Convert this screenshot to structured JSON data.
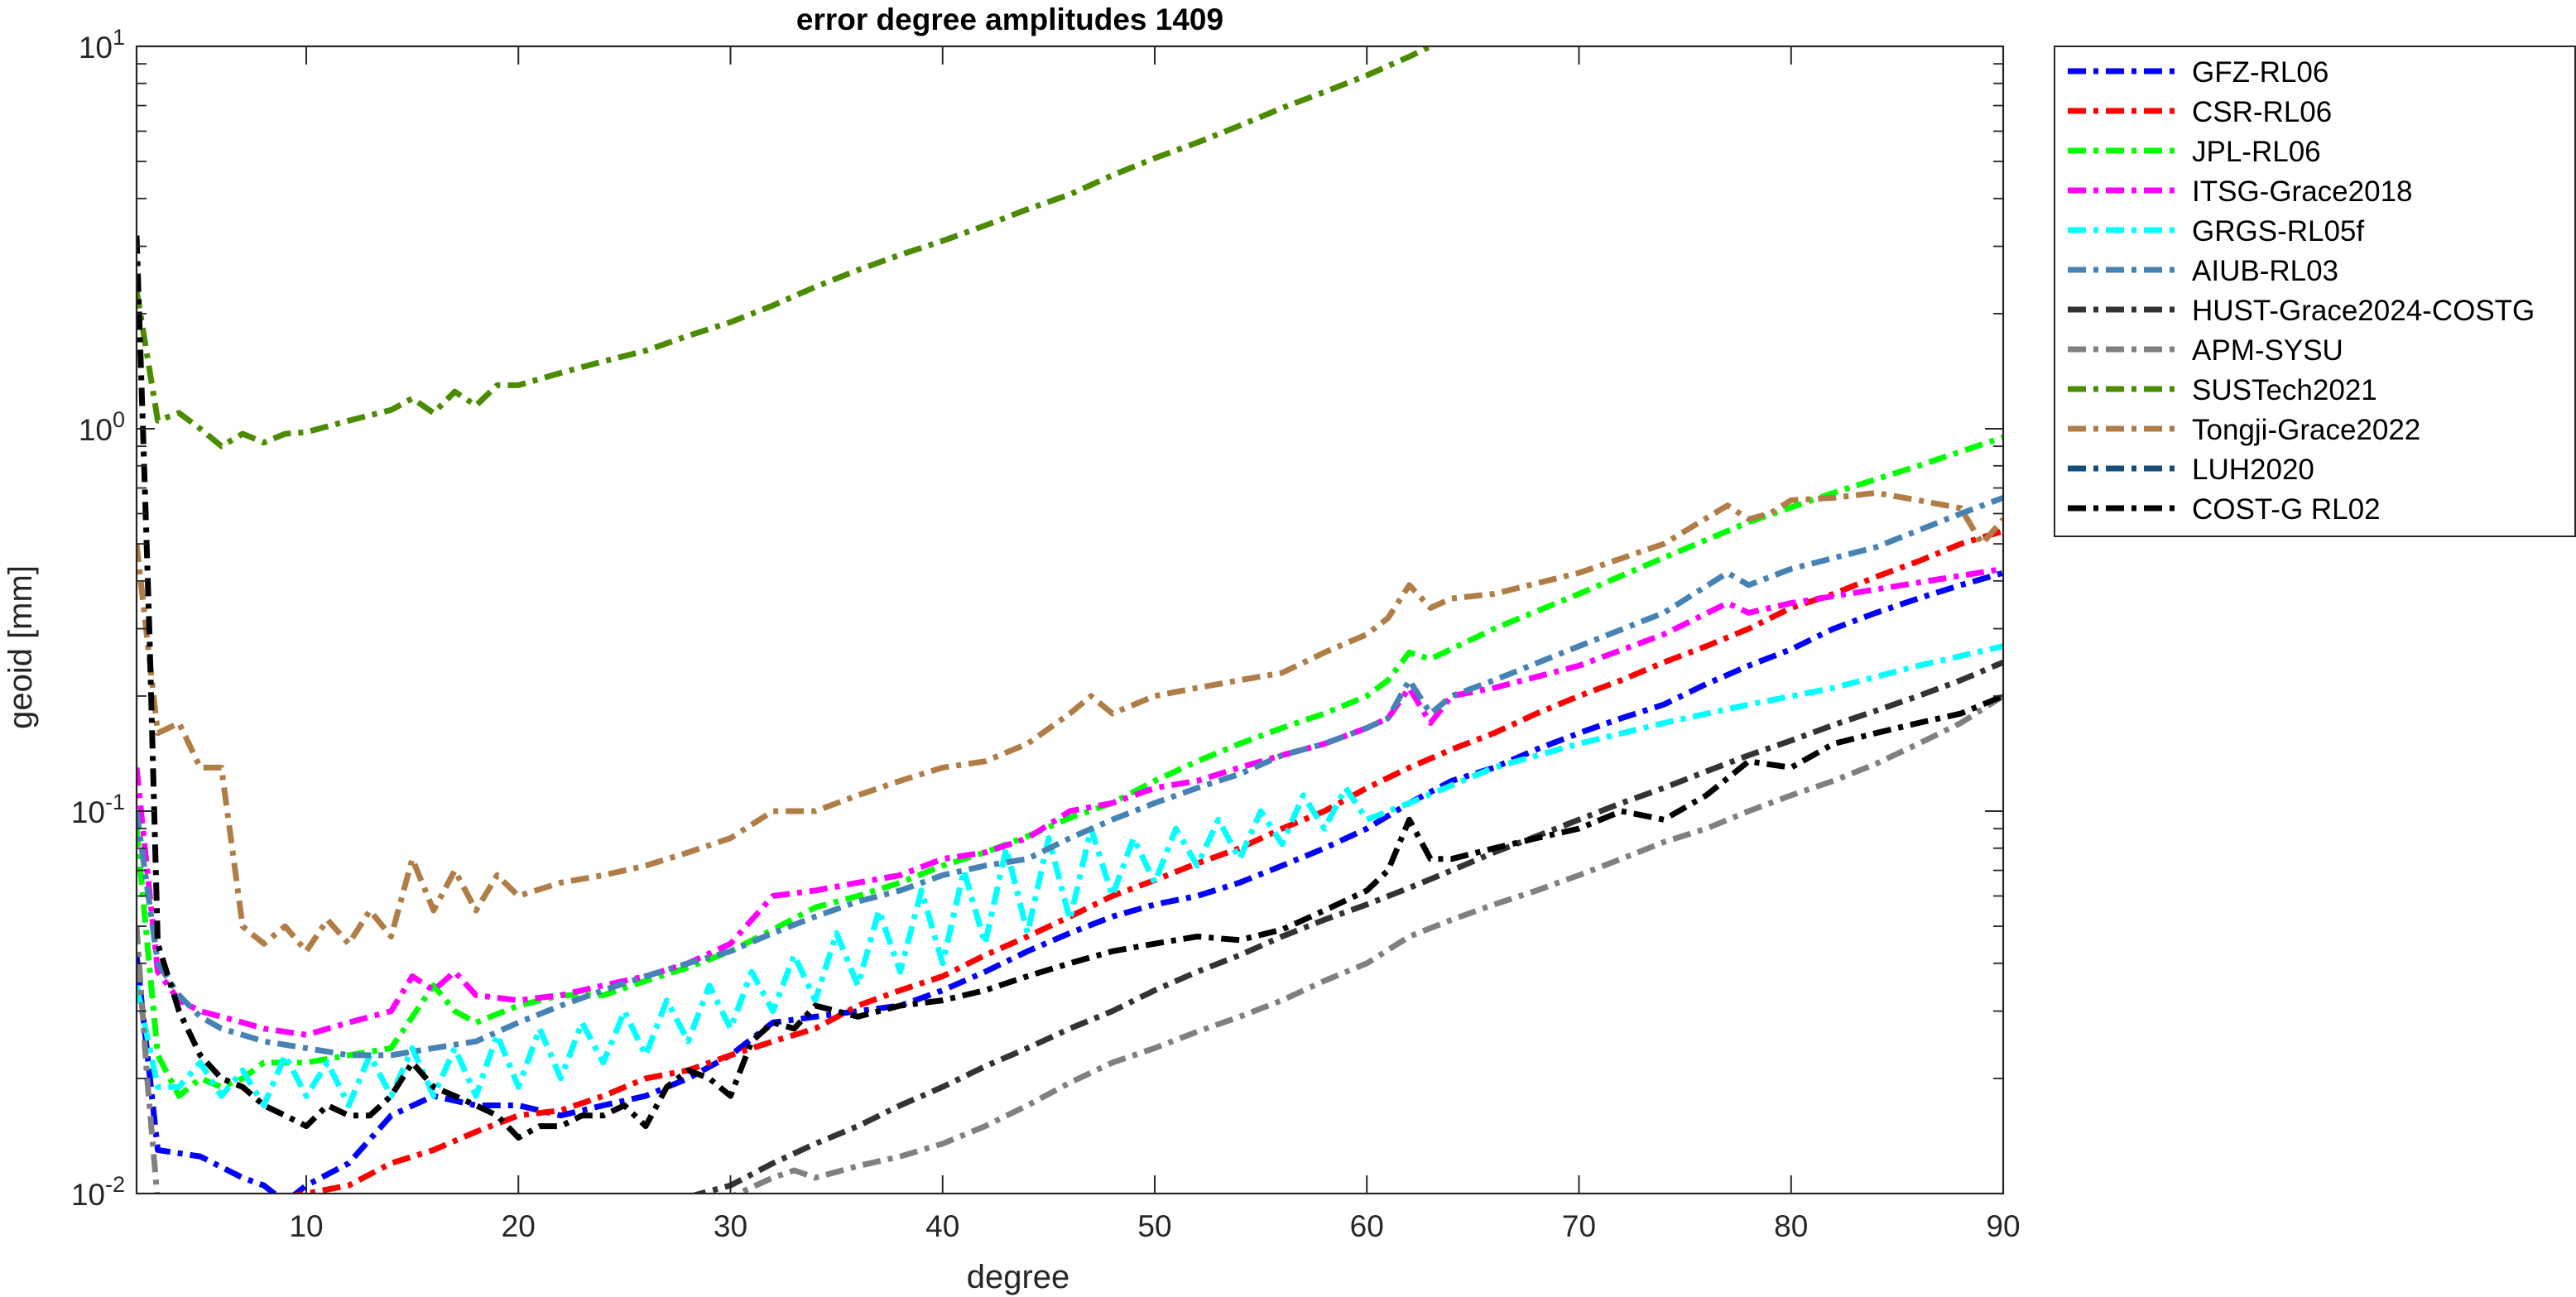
{
  "chart_data": {
    "type": "line",
    "title": "error degree amplitudes 1409",
    "xlabel": "degree",
    "ylabel": "geoid [mm]",
    "xlim": [
      2,
      90
    ],
    "ylim": [
      0.01,
      10
    ],
    "yscale": "log",
    "xticks": [
      10,
      20,
      30,
      40,
      50,
      60,
      70,
      80,
      90
    ],
    "xtick_labels": [
      "10",
      "20",
      "30",
      "40",
      "50",
      "60",
      "70",
      "80",
      "90"
    ],
    "yticks": [
      0.01,
      0.1,
      1,
      10
    ],
    "ytick_labels": [
      {
        "base": "10",
        "exp": "-2"
      },
      {
        "base": "10",
        "exp": "-1"
      },
      {
        "base": "10",
        "exp": "0"
      },
      {
        "base": "10",
        "exp": "1"
      }
    ],
    "grid": false,
    "legend_position": "outside-right",
    "series": [
      {
        "name": "GFZ-RL06",
        "color": "#0000FF",
        "style": "dashdot",
        "x": [
          2,
          3,
          5,
          7,
          8,
          9,
          10,
          12,
          14,
          16,
          18,
          20,
          22,
          24,
          26,
          28,
          30,
          32,
          34,
          36,
          38,
          40,
          42,
          44,
          46,
          48,
          50,
          52,
          54,
          56,
          58,
          60,
          62,
          64,
          66,
          68,
          70,
          72,
          74,
          76,
          78,
          80,
          82,
          84,
          86,
          88,
          90
        ],
        "y": [
          0.042,
          0.013,
          0.0125,
          0.011,
          0.0105,
          0.0095,
          0.0105,
          0.012,
          0.016,
          0.018,
          0.017,
          0.017,
          0.016,
          0.017,
          0.018,
          0.02,
          0.023,
          0.028,
          0.029,
          0.03,
          0.031,
          0.034,
          0.038,
          0.043,
          0.048,
          0.053,
          0.057,
          0.06,
          0.065,
          0.072,
          0.08,
          0.09,
          0.105,
          0.12,
          0.13,
          0.145,
          0.16,
          0.175,
          0.19,
          0.215,
          0.24,
          0.265,
          0.3,
          0.33,
          0.36,
          0.39,
          0.42
        ]
      },
      {
        "name": "CSR-RL06",
        "color": "#FF0000",
        "style": "dashdot",
        "x": [
          9,
          10,
          12,
          14,
          16,
          18,
          20,
          22,
          24,
          26,
          28,
          30,
          32,
          34,
          36,
          38,
          40,
          42,
          44,
          46,
          48,
          50,
          52,
          54,
          56,
          58,
          60,
          62,
          64,
          66,
          68,
          70,
          72,
          74,
          76,
          78,
          80,
          82,
          84,
          86,
          88,
          90
        ],
        "y": [
          0.0098,
          0.01,
          0.0105,
          0.012,
          0.013,
          0.0145,
          0.016,
          0.0165,
          0.018,
          0.02,
          0.021,
          0.023,
          0.025,
          0.027,
          0.031,
          0.034,
          0.037,
          0.042,
          0.047,
          0.053,
          0.06,
          0.066,
          0.073,
          0.08,
          0.09,
          0.1,
          0.115,
          0.13,
          0.145,
          0.16,
          0.18,
          0.2,
          0.22,
          0.245,
          0.27,
          0.3,
          0.34,
          0.37,
          0.41,
          0.45,
          0.5,
          0.54
        ]
      },
      {
        "name": "JPL-RL06",
        "color": "#00FF00",
        "style": "dashdot",
        "x": [
          2,
          3,
          4,
          5,
          6,
          7,
          8,
          10,
          12,
          14,
          16,
          17,
          18,
          20,
          22,
          24,
          26,
          28,
          30,
          32,
          34,
          36,
          38,
          40,
          42,
          44,
          46,
          48,
          50,
          52,
          54,
          56,
          58,
          60,
          61,
          62,
          63,
          66,
          70,
          74,
          78,
          82,
          86,
          90
        ],
        "y": [
          0.09,
          0.023,
          0.018,
          0.02,
          0.019,
          0.02,
          0.022,
          0.022,
          0.023,
          0.024,
          0.035,
          0.03,
          0.028,
          0.031,
          0.033,
          0.033,
          0.036,
          0.039,
          0.043,
          0.049,
          0.056,
          0.06,
          0.065,
          0.072,
          0.078,
          0.086,
          0.096,
          0.105,
          0.12,
          0.135,
          0.15,
          0.165,
          0.18,
          0.2,
          0.22,
          0.26,
          0.25,
          0.3,
          0.37,
          0.46,
          0.57,
          0.68,
          0.8,
          0.95
        ]
      },
      {
        "name": "ITSG-Grace2018",
        "color": "#FF00FF",
        "style": "dashdot",
        "x": [
          2,
          3,
          4,
          5,
          6,
          7,
          8,
          10,
          12,
          14,
          15,
          16,
          17,
          18,
          20,
          22,
          24,
          26,
          28,
          30,
          32,
          34,
          36,
          38,
          40,
          42,
          44,
          46,
          48,
          50,
          52,
          54,
          56,
          58,
          60,
          61,
          62,
          63,
          64,
          66,
          70,
          74,
          77,
          78,
          80,
          84,
          90
        ],
        "y": [
          0.13,
          0.038,
          0.032,
          0.03,
          0.029,
          0.028,
          0.027,
          0.026,
          0.028,
          0.03,
          0.037,
          0.034,
          0.038,
          0.033,
          0.032,
          0.033,
          0.035,
          0.037,
          0.04,
          0.045,
          0.06,
          0.062,
          0.065,
          0.068,
          0.075,
          0.078,
          0.085,
          0.1,
          0.105,
          0.115,
          0.12,
          0.13,
          0.14,
          0.15,
          0.165,
          0.175,
          0.21,
          0.17,
          0.2,
          0.21,
          0.24,
          0.29,
          0.35,
          0.33,
          0.35,
          0.38,
          0.43
        ]
      },
      {
        "name": "GRGS-RL05f",
        "color": "#00FFFF",
        "style": "dashdot",
        "x": [
          2,
          3,
          4,
          5,
          6,
          7,
          8,
          9,
          10,
          11,
          12,
          13,
          14,
          15,
          16,
          17,
          18,
          19,
          20,
          21,
          22,
          23,
          24,
          25,
          26,
          27,
          28,
          29,
          30,
          31,
          32,
          33,
          34,
          35,
          36,
          37,
          38,
          39,
          40,
          41,
          42,
          43,
          44,
          45,
          46,
          47,
          48,
          49,
          50,
          51,
          52,
          53,
          54,
          55,
          56,
          57,
          58,
          59,
          60,
          62,
          66,
          70,
          74,
          78,
          82,
          86,
          90
        ],
        "y": [
          0.035,
          0.019,
          0.019,
          0.022,
          0.018,
          0.021,
          0.017,
          0.023,
          0.018,
          0.022,
          0.017,
          0.023,
          0.018,
          0.024,
          0.018,
          0.024,
          0.018,
          0.026,
          0.019,
          0.027,
          0.02,
          0.028,
          0.022,
          0.03,
          0.023,
          0.032,
          0.025,
          0.035,
          0.027,
          0.038,
          0.03,
          0.042,
          0.032,
          0.048,
          0.035,
          0.055,
          0.038,
          0.062,
          0.04,
          0.07,
          0.045,
          0.08,
          0.048,
          0.085,
          0.052,
          0.09,
          0.06,
          0.085,
          0.065,
          0.09,
          0.072,
          0.095,
          0.075,
          0.1,
          0.082,
          0.11,
          0.09,
          0.115,
          0.095,
          0.105,
          0.13,
          0.15,
          0.17,
          0.19,
          0.21,
          0.24,
          0.27
        ]
      },
      {
        "name": "AIUB-RL03",
        "color": "#4682B4",
        "style": "dashdot",
        "x": [
          2,
          3,
          4,
          5,
          6,
          7,
          8,
          10,
          12,
          14,
          16,
          18,
          20,
          22,
          24,
          26,
          28,
          30,
          32,
          34,
          36,
          38,
          40,
          42,
          44,
          46,
          48,
          50,
          52,
          54,
          56,
          58,
          60,
          61,
          62,
          63,
          64,
          66,
          70,
          74,
          77,
          78,
          80,
          84,
          88,
          90
        ],
        "y": [
          0.1,
          0.04,
          0.033,
          0.029,
          0.027,
          0.026,
          0.025,
          0.024,
          0.023,
          0.023,
          0.024,
          0.025,
          0.028,
          0.031,
          0.034,
          0.037,
          0.04,
          0.043,
          0.048,
          0.053,
          0.058,
          0.062,
          0.068,
          0.072,
          0.075,
          0.085,
          0.095,
          0.105,
          0.115,
          0.125,
          0.14,
          0.15,
          0.165,
          0.175,
          0.22,
          0.18,
          0.2,
          0.22,
          0.27,
          0.33,
          0.42,
          0.39,
          0.43,
          0.49,
          0.6,
          0.66
        ]
      },
      {
        "name": "HUST-Grace2024-COSTG",
        "color": "#333333",
        "style": "dashdot",
        "x": [
          28,
          30,
          32,
          34,
          36,
          38,
          40,
          42,
          44,
          46,
          48,
          50,
          52,
          54,
          56,
          58,
          60,
          62,
          64,
          66,
          68,
          70,
          72,
          74,
          76,
          78,
          80,
          82,
          84,
          86,
          88,
          90
        ],
        "y": [
          0.0098,
          0.0105,
          0.012,
          0.0135,
          0.015,
          0.017,
          0.019,
          0.0215,
          0.024,
          0.027,
          0.03,
          0.034,
          0.038,
          0.042,
          0.047,
          0.052,
          0.057,
          0.063,
          0.07,
          0.078,
          0.086,
          0.095,
          0.105,
          0.115,
          0.127,
          0.14,
          0.153,
          0.168,
          0.183,
          0.2,
          0.22,
          0.245
        ]
      },
      {
        "name": "APM-SYSU",
        "color": "#808080",
        "style": "dashdot",
        "x": [
          2,
          2.5,
          3,
          30,
          32,
          33,
          34,
          36,
          38,
          40,
          42,
          44,
          46,
          48,
          50,
          52,
          54,
          56,
          58,
          60,
          62,
          64,
          66,
          68,
          70,
          72,
          74,
          76,
          78,
          80,
          82,
          84,
          86,
          88,
          90
        ],
        "y": [
          0.05,
          0.02,
          0.0095,
          0.0098,
          0.011,
          0.0115,
          0.011,
          0.0118,
          0.0125,
          0.0135,
          0.015,
          0.017,
          0.0195,
          0.022,
          0.024,
          0.0265,
          0.029,
          0.032,
          0.036,
          0.04,
          0.047,
          0.052,
          0.057,
          0.062,
          0.068,
          0.075,
          0.083,
          0.09,
          0.1,
          0.11,
          0.12,
          0.133,
          0.15,
          0.17,
          0.2
        ]
      },
      {
        "name": "SUSTech2021",
        "color": "#4B8B00",
        "style": "dashdot",
        "x": [
          2,
          3,
          4,
          5,
          6,
          7,
          8,
          9,
          10,
          12,
          14,
          15,
          16,
          17,
          18,
          19,
          20,
          22,
          24,
          26,
          28,
          30,
          32,
          34,
          36,
          38,
          40,
          42,
          44,
          46,
          48,
          50,
          52,
          54,
          56,
          58,
          60,
          62,
          63
        ],
        "y": [
          2.3,
          1.05,
          1.1,
          1.0,
          0.9,
          0.97,
          0.92,
          0.97,
          0.98,
          1.05,
          1.12,
          1.2,
          1.1,
          1.25,
          1.15,
          1.3,
          1.3,
          1.4,
          1.5,
          1.6,
          1.75,
          1.9,
          2.1,
          2.35,
          2.6,
          2.85,
          3.1,
          3.4,
          3.75,
          4.1,
          4.6,
          5.1,
          5.6,
          6.2,
          6.9,
          7.6,
          8.4,
          9.4,
          10
        ]
      },
      {
        "name": "Tongji-Grace2022",
        "color": "#B07D46",
        "style": "dashdot",
        "x": [
          2,
          3,
          4,
          5,
          6,
          7,
          8,
          9,
          10,
          11,
          12,
          13,
          14,
          15,
          16,
          17,
          18,
          19,
          20,
          22,
          24,
          26,
          28,
          30,
          32,
          34,
          36,
          38,
          40,
          42,
          44,
          46,
          47,
          48,
          50,
          52,
          54,
          56,
          58,
          60,
          61,
          62,
          63,
          64,
          66,
          70,
          74,
          77,
          78,
          79,
          80,
          82,
          84,
          86,
          88,
          89,
          90
        ],
        "y": [
          0.5,
          0.16,
          0.17,
          0.13,
          0.13,
          0.05,
          0.045,
          0.05,
          0.043,
          0.052,
          0.045,
          0.055,
          0.047,
          0.075,
          0.055,
          0.07,
          0.055,
          0.068,
          0.06,
          0.065,
          0.068,
          0.072,
          0.078,
          0.085,
          0.1,
          0.1,
          0.11,
          0.12,
          0.13,
          0.135,
          0.15,
          0.18,
          0.2,
          0.18,
          0.2,
          0.21,
          0.22,
          0.23,
          0.26,
          0.29,
          0.32,
          0.39,
          0.34,
          0.36,
          0.37,
          0.42,
          0.5,
          0.63,
          0.58,
          0.6,
          0.65,
          0.66,
          0.68,
          0.65,
          0.62,
          0.5,
          0.58
        ]
      },
      {
        "name": "LUH2020",
        "color": "#134F7A",
        "style": "dashdot",
        "x": [],
        "y": []
      },
      {
        "name": "COST-G RL02",
        "color": "#000000",
        "style": "dashdot",
        "x": [
          2,
          2.3,
          2.6,
          3,
          4,
          5,
          6,
          7,
          8,
          9,
          10,
          11,
          12,
          13,
          14,
          15,
          16,
          17,
          18,
          19,
          20,
          21,
          22,
          23,
          24,
          25,
          26,
          27,
          28,
          29,
          30,
          31,
          32,
          33,
          34,
          35,
          36,
          37,
          38,
          40,
          42,
          44,
          46,
          48,
          50,
          52,
          54,
          56,
          58,
          60,
          61,
          62,
          63,
          64,
          66,
          68,
          70,
          72,
          74,
          76,
          78,
          80,
          82,
          84,
          86,
          88,
          90
        ],
        "y": [
          3.2,
          1.0,
          0.3,
          0.045,
          0.03,
          0.023,
          0.02,
          0.019,
          0.017,
          0.016,
          0.015,
          0.017,
          0.016,
          0.016,
          0.018,
          0.022,
          0.019,
          0.018,
          0.017,
          0.016,
          0.014,
          0.015,
          0.015,
          0.016,
          0.016,
          0.017,
          0.015,
          0.019,
          0.021,
          0.02,
          0.018,
          0.025,
          0.028,
          0.027,
          0.031,
          0.03,
          0.029,
          0.03,
          0.031,
          0.032,
          0.034,
          0.037,
          0.04,
          0.043,
          0.045,
          0.047,
          0.046,
          0.049,
          0.055,
          0.062,
          0.07,
          0.095,
          0.075,
          0.075,
          0.08,
          0.085,
          0.09,
          0.1,
          0.095,
          0.11,
          0.135,
          0.13,
          0.15,
          0.16,
          0.17,
          0.18,
          0.2
        ]
      }
    ]
  }
}
